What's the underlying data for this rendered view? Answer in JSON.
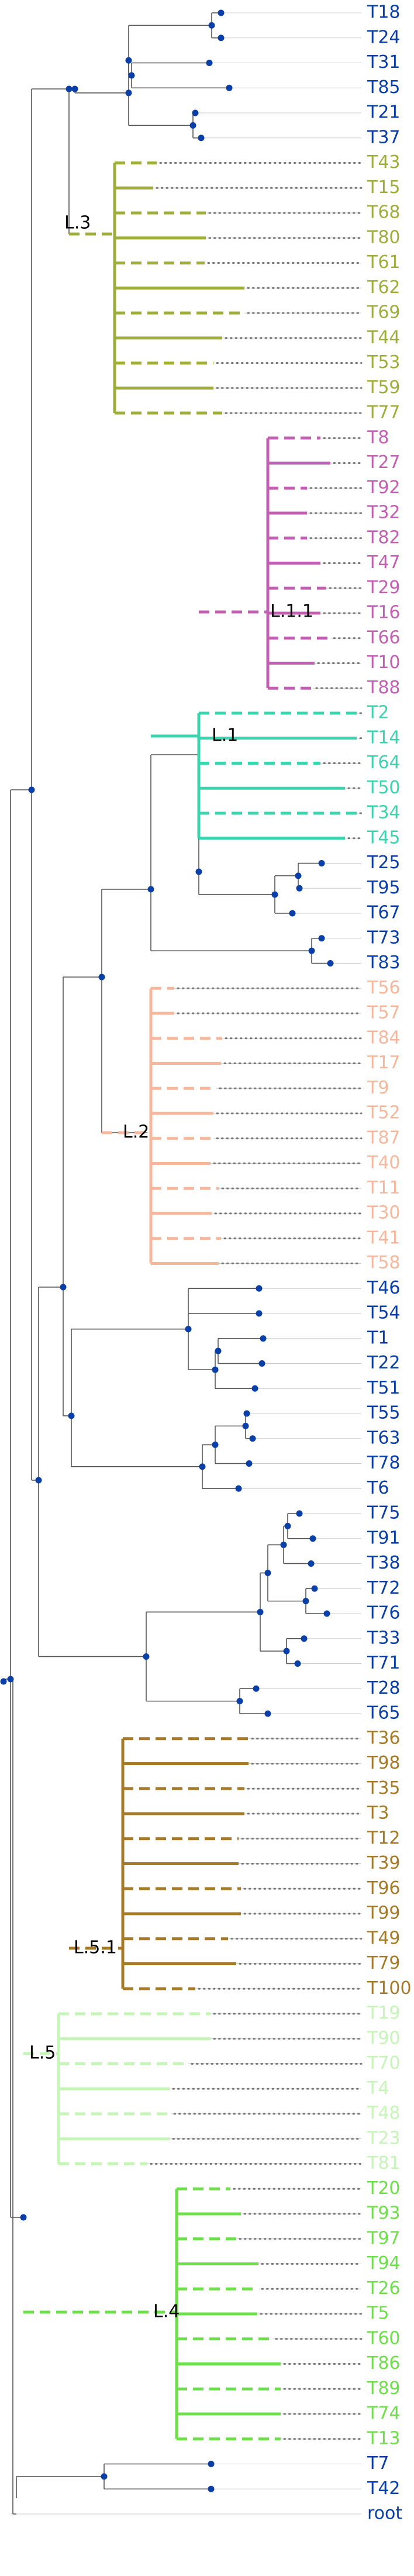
{
  "colors": {
    "default": "#0a3fa8",
    "L.3": "#9fae3a",
    "L.1.1": "#c35fb3",
    "L.1": "#3ad4ae",
    "L.2": "#f7b79c",
    "L.5.1": "#a77a28",
    "L.5": "#c6f5b8",
    "L.4": "#6ddf4a"
  },
  "clade_labels": [
    {
      "text": "L.3",
      "group": "L.3"
    },
    {
      "text": "L.1.1",
      "group": "L.1.1"
    },
    {
      "text": "L.1",
      "group": "L.1"
    },
    {
      "text": "L.2",
      "group": "L.2"
    },
    {
      "text": "L.5.1",
      "group": "L.5.1"
    },
    {
      "text": "L.5",
      "group": "L.5"
    },
    {
      "text": "L.4",
      "group": "L.4"
    }
  ],
  "leaves": [
    {
      "label": "T18",
      "group": "default"
    },
    {
      "label": "T24",
      "group": "default"
    },
    {
      "label": "T31",
      "group": "default"
    },
    {
      "label": "T85",
      "group": "default"
    },
    {
      "label": "T21",
      "group": "default"
    },
    {
      "label": "T37",
      "group": "default"
    },
    {
      "label": "T43",
      "group": "L.3"
    },
    {
      "label": "T15",
      "group": "L.3"
    },
    {
      "label": "T68",
      "group": "L.3"
    },
    {
      "label": "T80",
      "group": "L.3"
    },
    {
      "label": "T61",
      "group": "L.3"
    },
    {
      "label": "T62",
      "group": "L.3"
    },
    {
      "label": "T69",
      "group": "L.3"
    },
    {
      "label": "T44",
      "group": "L.3"
    },
    {
      "label": "T53",
      "group": "L.3"
    },
    {
      "label": "T59",
      "group": "L.3"
    },
    {
      "label": "T77",
      "group": "L.3"
    },
    {
      "label": "T8",
      "group": "L.1.1"
    },
    {
      "label": "T27",
      "group": "L.1.1"
    },
    {
      "label": "T92",
      "group": "L.1.1"
    },
    {
      "label": "T32",
      "group": "L.1.1"
    },
    {
      "label": "T82",
      "group": "L.1.1"
    },
    {
      "label": "T47",
      "group": "L.1.1"
    },
    {
      "label": "T29",
      "group": "L.1.1"
    },
    {
      "label": "T16",
      "group": "L.1.1"
    },
    {
      "label": "T66",
      "group": "L.1.1"
    },
    {
      "label": "T10",
      "group": "L.1.1"
    },
    {
      "label": "T88",
      "group": "L.1.1"
    },
    {
      "label": "T2",
      "group": "L.1"
    },
    {
      "label": "T14",
      "group": "L.1"
    },
    {
      "label": "T64",
      "group": "L.1"
    },
    {
      "label": "T50",
      "group": "L.1"
    },
    {
      "label": "T34",
      "group": "L.1"
    },
    {
      "label": "T45",
      "group": "L.1"
    },
    {
      "label": "T25",
      "group": "default"
    },
    {
      "label": "T95",
      "group": "default"
    },
    {
      "label": "T67",
      "group": "default"
    },
    {
      "label": "T73",
      "group": "default"
    },
    {
      "label": "T83",
      "group": "default"
    },
    {
      "label": "T56",
      "group": "L.2"
    },
    {
      "label": "T57",
      "group": "L.2"
    },
    {
      "label": "T84",
      "group": "L.2"
    },
    {
      "label": "T17",
      "group": "L.2"
    },
    {
      "label": "T9",
      "group": "L.2"
    },
    {
      "label": "T52",
      "group": "L.2"
    },
    {
      "label": "T87",
      "group": "L.2"
    },
    {
      "label": "T40",
      "group": "L.2"
    },
    {
      "label": "T11",
      "group": "L.2"
    },
    {
      "label": "T30",
      "group": "L.2"
    },
    {
      "label": "T41",
      "group": "L.2"
    },
    {
      "label": "T58",
      "group": "L.2"
    },
    {
      "label": "T46",
      "group": "default"
    },
    {
      "label": "T54",
      "group": "default"
    },
    {
      "label": "T1",
      "group": "default"
    },
    {
      "label": "T22",
      "group": "default"
    },
    {
      "label": "T51",
      "group": "default"
    },
    {
      "label": "T55",
      "group": "default"
    },
    {
      "label": "T63",
      "group": "default"
    },
    {
      "label": "T78",
      "group": "default"
    },
    {
      "label": "T6",
      "group": "default"
    },
    {
      "label": "T75",
      "group": "default"
    },
    {
      "label": "T91",
      "group": "default"
    },
    {
      "label": "T38",
      "group": "default"
    },
    {
      "label": "T72",
      "group": "default"
    },
    {
      "label": "T76",
      "group": "default"
    },
    {
      "label": "T33",
      "group": "default"
    },
    {
      "label": "T71",
      "group": "default"
    },
    {
      "label": "T28",
      "group": "default"
    },
    {
      "label": "T65",
      "group": "default"
    },
    {
      "label": "T36",
      "group": "L.5.1"
    },
    {
      "label": "T98",
      "group": "L.5.1"
    },
    {
      "label": "T35",
      "group": "L.5.1"
    },
    {
      "label": "T3",
      "group": "L.5.1"
    },
    {
      "label": "T12",
      "group": "L.5.1"
    },
    {
      "label": "T39",
      "group": "L.5.1"
    },
    {
      "label": "T96",
      "group": "L.5.1"
    },
    {
      "label": "T99",
      "group": "L.5.1"
    },
    {
      "label": "T49",
      "group": "L.5.1"
    },
    {
      "label": "T79",
      "group": "L.5.1"
    },
    {
      "label": "T100",
      "group": "L.5.1"
    },
    {
      "label": "T19",
      "group": "L.5"
    },
    {
      "label": "T90",
      "group": "L.5"
    },
    {
      "label": "T70",
      "group": "L.5"
    },
    {
      "label": "T4",
      "group": "L.5"
    },
    {
      "label": "T48",
      "group": "L.5"
    },
    {
      "label": "T23",
      "group": "L.5"
    },
    {
      "label": "T81",
      "group": "L.5"
    },
    {
      "label": "T20",
      "group": "L.4"
    },
    {
      "label": "T93",
      "group": "L.4"
    },
    {
      "label": "T97",
      "group": "L.4"
    },
    {
      "label": "T94",
      "group": "L.4"
    },
    {
      "label": "T26",
      "group": "L.4"
    },
    {
      "label": "T5",
      "group": "L.4"
    },
    {
      "label": "T60",
      "group": "L.4"
    },
    {
      "label": "T86",
      "group": "L.4"
    },
    {
      "label": "T89",
      "group": "L.4"
    },
    {
      "label": "T74",
      "group": "L.4"
    },
    {
      "label": "T13",
      "group": "L.4"
    },
    {
      "label": "T7",
      "group": "default"
    },
    {
      "label": "T42",
      "group": "default"
    },
    {
      "label": "root",
      "group": "default"
    }
  ]
}
